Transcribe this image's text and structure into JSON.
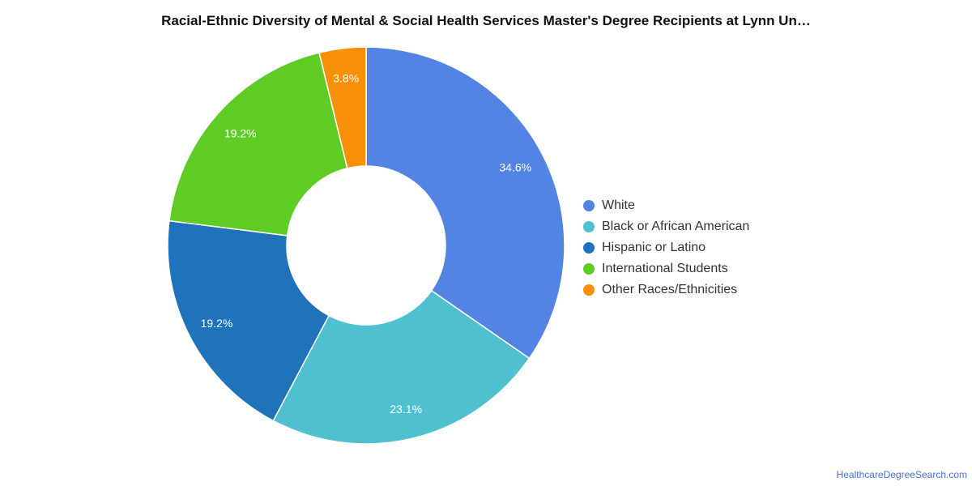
{
  "chart_data": {
    "type": "pie",
    "title": "Racial-Ethnic Diversity of Mental & Social Health Services Master's Degree Recipients at Lynn Un…",
    "slices": [
      {
        "name": "White",
        "value": 34.6,
        "label": "34.6%",
        "color": "#5484e3"
      },
      {
        "name": "Black or African American",
        "value": 23.1,
        "label": "23.1%",
        "color": "#4fc0cf"
      },
      {
        "name": "Hispanic or Latino",
        "value": 19.2,
        "label": "19.2%",
        "color": "#1f73ba"
      },
      {
        "name": "International Students",
        "value": 19.2,
        "label": "19.2%",
        "color": "#5fcc24"
      },
      {
        "name": "Other Races/Ethnicities",
        "value": 3.8,
        "label": "3.8%",
        "color": "#f78f07"
      }
    ],
    "legend_position": "right"
  },
  "footer": {
    "source": "HealthcareDegreeSearch.com"
  }
}
